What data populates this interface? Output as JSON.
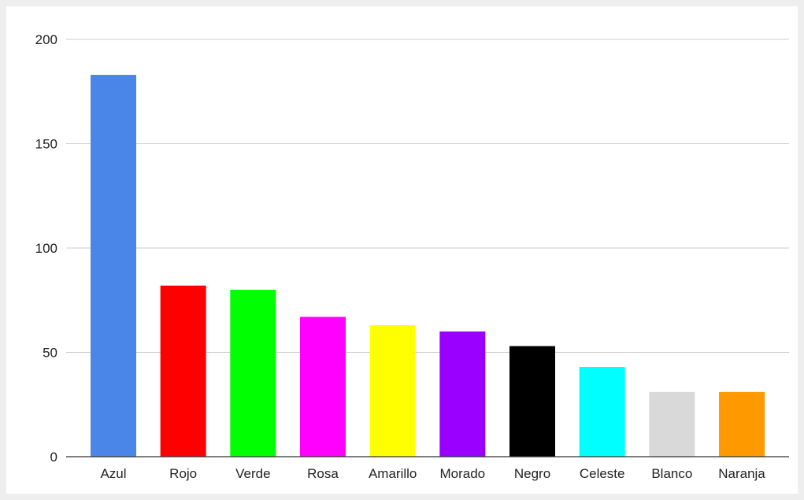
{
  "chart_data": {
    "type": "bar",
    "title": "",
    "xlabel": "",
    "ylabel": "",
    "categories": [
      "Azul",
      "Rojo",
      "Verde",
      "Rosa",
      "Amarillo",
      "Morado",
      "Negro",
      "Celeste",
      "Blanco",
      "Naranja"
    ],
    "values": [
      183,
      82,
      80,
      67,
      63,
      60,
      53,
      43,
      31,
      31
    ],
    "colors": [
      "#4a86e8",
      "#ff0000",
      "#00ff00",
      "#ff00ff",
      "#ffff00",
      "#9900ff",
      "#000000",
      "#00ffff",
      "#d9d9d9",
      "#ff9900"
    ],
    "ylim": [
      0,
      200
    ],
    "yticks": [
      0,
      50,
      100,
      150,
      200
    ],
    "ytick_labels": [
      "0",
      "50",
      "100",
      "150",
      "200"
    ],
    "grid": true,
    "legend": "none"
  }
}
